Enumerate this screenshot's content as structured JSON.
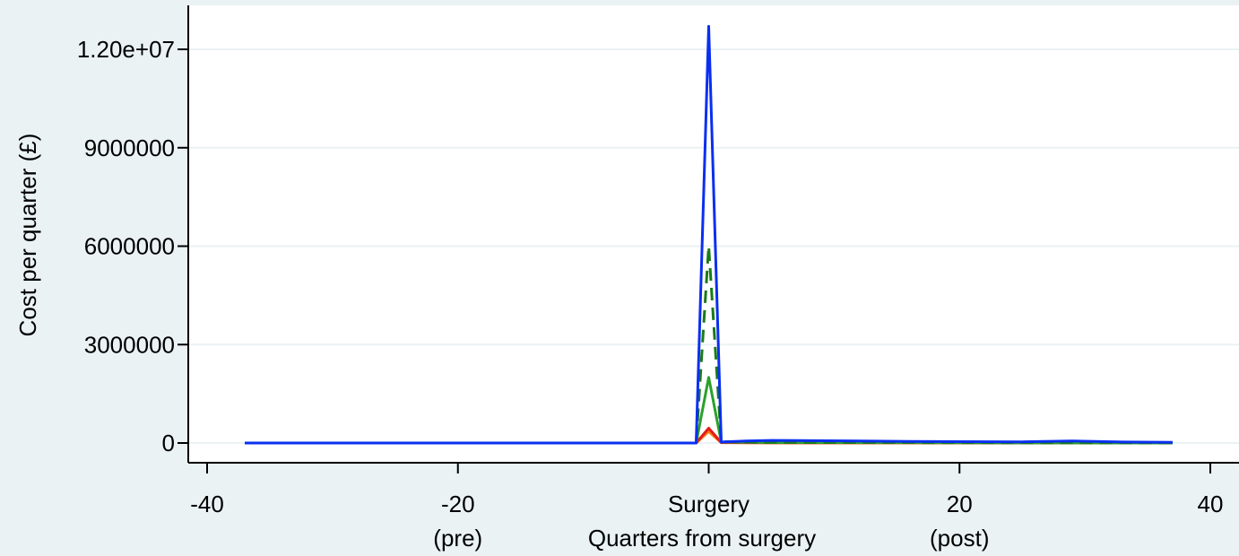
{
  "chart_data": {
    "type": "line",
    "title": "",
    "xlabel": "Quarters from surgery",
    "ylabel": "Cost per quarter (£)",
    "xlim": [
      -42,
      42
    ],
    "ylim": [
      -400000,
      13200000
    ],
    "grid": true,
    "legend": "none",
    "x_ticks": [
      {
        "value": -40,
        "label": "-40",
        "sublabel": ""
      },
      {
        "value": -20,
        "label": "-20",
        "sublabel": "(pre)"
      },
      {
        "value": 0,
        "label": "Surgery",
        "sublabel": ""
      },
      {
        "value": 20,
        "label": "20",
        "sublabel": "(post)"
      },
      {
        "value": 40,
        "label": "40",
        "sublabel": ""
      }
    ],
    "y_ticks": [
      {
        "value": 0,
        "label": "0"
      },
      {
        "value": 3000000,
        "label": "3000000"
      },
      {
        "value": 6000000,
        "label": "6000000"
      },
      {
        "value": 9000000,
        "label": "9000000"
      },
      {
        "value": 12000000,
        "label": "1.20e+07"
      }
    ],
    "series": [
      {
        "color": "#ff7f0e",
        "style": "solid",
        "x": [
          -37,
          -1,
          0,
          1,
          5,
          37
        ],
        "y": [
          0,
          0,
          350000,
          10000,
          5000,
          0
        ]
      },
      {
        "color": "#e41a1c",
        "style": "solid",
        "x": [
          -37,
          -1,
          0,
          1,
          5,
          37
        ],
        "y": [
          0,
          0,
          450000,
          15000,
          8000,
          0
        ]
      },
      {
        "color": "#2ca02c",
        "style": "solid",
        "x": [
          -37,
          -1,
          0,
          1,
          5,
          37
        ],
        "y": [
          0,
          0,
          2000000,
          30000,
          15000,
          0
        ]
      },
      {
        "color": "#1b7a1b",
        "style": "dashed",
        "x": [
          -37,
          -1,
          0,
          1,
          5,
          37
        ],
        "y": [
          0,
          0,
          6000000,
          40000,
          20000,
          0
        ]
      },
      {
        "color": "#0a2ff0",
        "style": "solid",
        "x": [
          -37,
          -1,
          0,
          1,
          3,
          5,
          8,
          12,
          16,
          20,
          25,
          29,
          33,
          37
        ],
        "y": [
          0,
          0,
          12700000,
          30000,
          60000,
          80000,
          70000,
          60000,
          50000,
          40000,
          35000,
          60000,
          30000,
          20000
        ]
      }
    ]
  }
}
